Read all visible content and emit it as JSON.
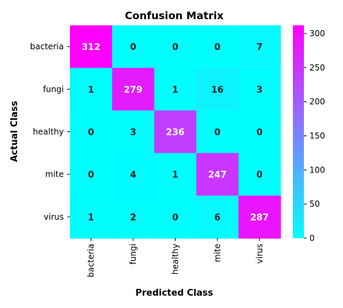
{
  "chart_data": {
    "type": "heatmap",
    "title": "Confusion Matrix",
    "xlabel": "Predicted Class",
    "ylabel": "Actual Class",
    "x_categories": [
      "bacteria",
      "fungi",
      "healthy",
      "mite",
      "virus"
    ],
    "y_categories": [
      "bacteria",
      "fungi",
      "healthy",
      "mite",
      "virus"
    ],
    "values": [
      [
        312,
        0,
        0,
        0,
        7
      ],
      [
        1,
        279,
        1,
        16,
        3
      ],
      [
        0,
        3,
        236,
        0,
        0
      ],
      [
        0,
        4,
        1,
        247,
        0
      ],
      [
        1,
        2,
        0,
        6,
        287
      ]
    ],
    "colormap": "cool",
    "color_min": "#00ffff",
    "color_max": "#ff00ff",
    "vmin": 0,
    "vmax": 312,
    "colorbar_ticks": [
      0,
      50,
      100,
      150,
      200,
      250,
      300
    ],
    "annotation_text_colors": {
      "dark_cells": "#ffffff",
      "light_cells": "#262626"
    }
  }
}
